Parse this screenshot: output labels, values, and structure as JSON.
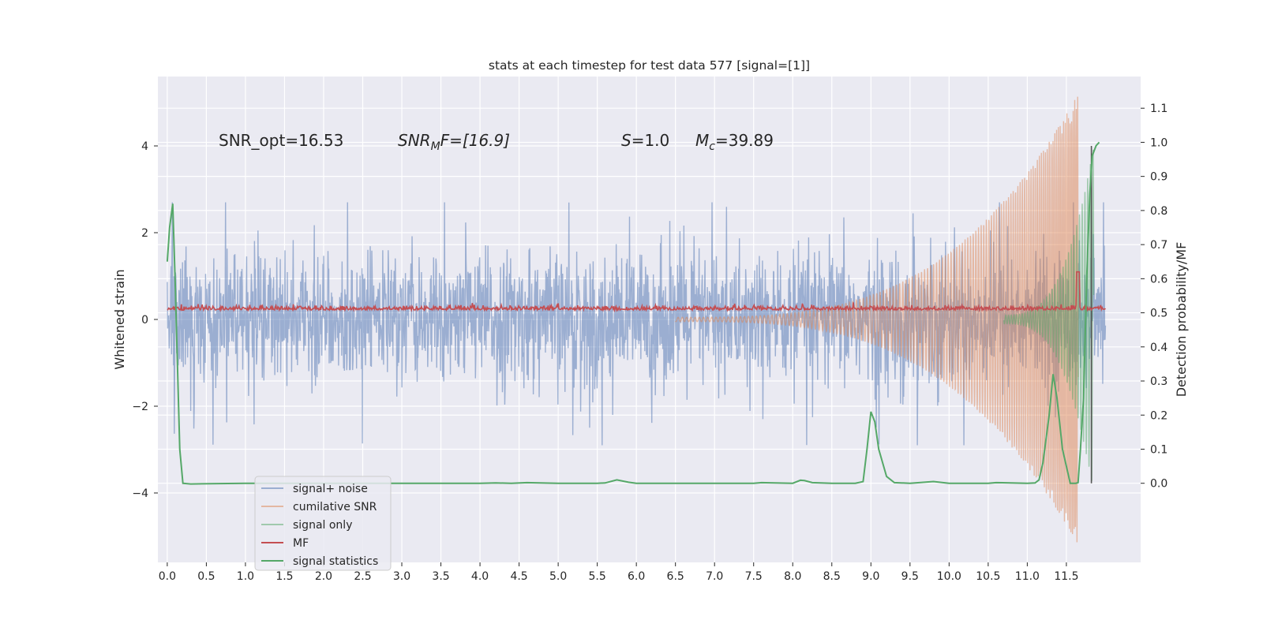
{
  "chart_data": {
    "type": "line",
    "title": "stats at each timestep for test data 577 [signal=[1]]",
    "ylabel": "Whitened strain",
    "y2label": "Detection probability/MF",
    "xlim": [
      -0.12,
      12.45
    ],
    "ylim": [
      -5.6,
      5.6
    ],
    "y2lim": [
      -0.232,
      1.193
    ],
    "x_ticks": [
      0.0,
      0.5,
      1.0,
      1.5,
      2.0,
      2.5,
      3.0,
      3.5,
      4.0,
      4.5,
      5.0,
      5.5,
      6.0,
      6.5,
      7.0,
      7.5,
      8.0,
      8.5,
      9.0,
      9.5,
      10.0,
      10.5,
      11.0,
      11.5
    ],
    "x_tick_labels": [
      "0.0",
      "0.5",
      "1.0",
      "1.5",
      "2.0",
      "2.5",
      "3.0",
      "3.5",
      "4.0",
      "4.5",
      "5.0",
      "5.5",
      "6.0",
      "6.5",
      "7.0",
      "7.5",
      "8.0",
      "8.5",
      "9.0",
      "9.5",
      "10.0",
      "10.5",
      "11.0",
      "11.5"
    ],
    "y_ticks": [
      -4,
      -2,
      0,
      2,
      4
    ],
    "y_tick_labels": [
      "−4",
      "−2",
      "0",
      "2",
      "4"
    ],
    "y2_ticks": [
      0.0,
      0.1,
      0.2,
      0.3,
      0.4,
      0.5,
      0.6,
      0.7,
      0.8,
      0.9,
      1.0,
      1.1
    ],
    "y2_tick_labels": [
      "0.0",
      "0.1",
      "0.2",
      "0.3",
      "0.4",
      "0.5",
      "0.6",
      "0.7",
      "0.8",
      "0.9",
      "1.0",
      "1.1"
    ],
    "grid": true,
    "annotations": {
      "snr_opt": "SNR_opt=16.53",
      "snr_mf_main": "SNR",
      "snr_mf_sub": "M",
      "snr_mf_tail": "F=[16.9]",
      "s_main": "S",
      "s_tail": "=1.0",
      "mc_main": "M",
      "mc_sub": "c",
      "mc_tail": "=39.89"
    },
    "vertical_line_x": 11.82,
    "series": [
      {
        "name": "signal+ noise",
        "color": "#4c72b0",
        "alpha": 0.5,
        "axis": "left",
        "description_range": [
          -1.5,
          1.5
        ],
        "x_range": [
          0.0,
          12.0
        ]
      },
      {
        "name": "cumilative SNR",
        "color": "#dd8452",
        "alpha": 0.5,
        "axis": "left",
        "x_range": [
          6.5,
          11.65
        ],
        "amplitude_start": 0.05,
        "amplitude_end": 5.2
      },
      {
        "name": "signal only",
        "color": "#55a868",
        "alpha": 0.5,
        "axis": "left",
        "x_range": [
          10.7,
          11.85
        ],
        "amplitude_start": 0.1,
        "amplitude_end": 4.0
      },
      {
        "name": "MF",
        "color": "#c44e52",
        "alpha": 1.0,
        "axis": "right",
        "baseline": 0.5,
        "spike_x": 11.65,
        "spike_value": 0.62
      },
      {
        "name": "signal statistics",
        "color": "#55a868",
        "alpha": 1.0,
        "axis": "right",
        "points": [
          [
            0.0,
            0.65
          ],
          [
            0.03,
            0.75
          ],
          [
            0.07,
            0.82
          ],
          [
            0.1,
            0.6
          ],
          [
            0.13,
            0.35
          ],
          [
            0.16,
            0.1
          ],
          [
            0.2,
            0.0
          ],
          [
            0.3,
            -0.002
          ],
          [
            1.0,
            0.0
          ],
          [
            2.0,
            0.0
          ],
          [
            3.0,
            0.0
          ],
          [
            4.0,
            0.0
          ],
          [
            4.2,
            0.001
          ],
          [
            4.4,
            0.0
          ],
          [
            4.6,
            0.002
          ],
          [
            5.0,
            0.0
          ],
          [
            5.5,
            0.0
          ],
          [
            5.6,
            0.001
          ],
          [
            5.75,
            0.01
          ],
          [
            5.9,
            0.003
          ],
          [
            6.0,
            0.0
          ],
          [
            7.0,
            0.0
          ],
          [
            7.5,
            0.0
          ],
          [
            7.6,
            0.002
          ],
          [
            8.0,
            0.0
          ],
          [
            8.1,
            0.009
          ],
          [
            8.15,
            0.008
          ],
          [
            8.25,
            0.002
          ],
          [
            8.5,
            0.0
          ],
          [
            8.8,
            0.0
          ],
          [
            8.9,
            0.005
          ],
          [
            8.95,
            0.1
          ],
          [
            9.0,
            0.21
          ],
          [
            9.05,
            0.18
          ],
          [
            9.1,
            0.1
          ],
          [
            9.2,
            0.02
          ],
          [
            9.3,
            0.002
          ],
          [
            9.5,
            0.0
          ],
          [
            9.8,
            0.005
          ],
          [
            10.0,
            0.0
          ],
          [
            10.5,
            0.0
          ],
          [
            10.6,
            0.002
          ],
          [
            11.0,
            0.0
          ],
          [
            11.1,
            0.001
          ],
          [
            11.15,
            0.01
          ],
          [
            11.2,
            0.06
          ],
          [
            11.28,
            0.2
          ],
          [
            11.33,
            0.32
          ],
          [
            11.38,
            0.25
          ],
          [
            11.45,
            0.1
          ],
          [
            11.5,
            0.05
          ],
          [
            11.55,
            0.0
          ],
          [
            11.62,
            0.0
          ],
          [
            11.65,
            0.002
          ],
          [
            11.68,
            0.1
          ],
          [
            11.72,
            0.25
          ],
          [
            11.76,
            0.6
          ],
          [
            11.8,
            0.85
          ],
          [
            11.83,
            0.96
          ],
          [
            11.88,
            0.99
          ],
          [
            11.92,
            1.0
          ]
        ]
      }
    ]
  }
}
